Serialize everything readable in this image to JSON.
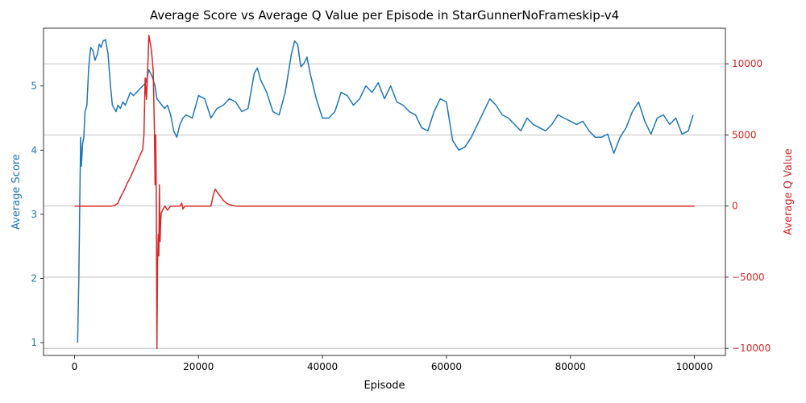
{
  "chart_data": {
    "type": "line",
    "title": "Average Score vs Average Q Value per Episode in StarGunnerNoFrameskip-v4",
    "xlabel": "Episode",
    "xlim": [
      -5000,
      105000
    ],
    "xticks": [
      0,
      20000,
      40000,
      60000,
      80000,
      100000
    ],
    "colors": {
      "score": "#1f77b4",
      "q": "#d62728"
    },
    "grid": "horizontal lines at right-axis ticks",
    "left_axis": {
      "label": "Average Score",
      "ylim": [
        0.8,
        5.9
      ],
      "ticks": [
        1,
        2,
        3,
        4,
        5
      ]
    },
    "right_axis": {
      "label": "Average Q Value",
      "ylim": [
        -10500,
        12500
      ],
      "ticks": [
        -10000,
        -5000,
        0,
        5000,
        10000
      ]
    },
    "series": [
      {
        "axis": "left",
        "x": [
          500,
          700,
          900,
          1000,
          1100,
          1300,
          1500,
          1700,
          2000,
          2300,
          2600,
          3000,
          3300,
          3700,
          4000,
          4300,
          4600,
          5000,
          5400,
          5800,
          6100,
          6400,
          6700,
          7000,
          7400,
          7800,
          8200,
          8600,
          9000,
          9500,
          10000,
          10500,
          11000,
          11500,
          12000,
          12500,
          13000,
          13300,
          13700,
          14100,
          14500,
          15000,
          15500,
          16000,
          16500,
          17000,
          17500,
          18000,
          19000,
          20000,
          21000,
          22000,
          23000,
          24000,
          25000,
          26000,
          27000,
          28000,
          29000,
          29500,
          30000,
          31000,
          32000,
          33000,
          34000,
          35000,
          35500,
          36000,
          36500,
          37000,
          37500,
          38000,
          39000,
          40000,
          41000,
          42000,
          43000,
          44000,
          45000,
          46000,
          47000,
          48000,
          49000,
          50000,
          51000,
          52000,
          53000,
          54000,
          55000,
          56000,
          57000,
          58000,
          59000,
          60000,
          61000,
          62000,
          63000,
          64000,
          65000,
          66000,
          67000,
          68000,
          69000,
          70000,
          71000,
          72000,
          73000,
          74000,
          75000,
          76000,
          77000,
          78000,
          79000,
          80000,
          81000,
          82000,
          83000,
          84000,
          85000,
          86000,
          87000,
          88000,
          89000,
          90000,
          91000,
          92000,
          93000,
          94000,
          95000,
          96000,
          97000,
          98000,
          99000,
          99800
        ],
        "y": [
          1.0,
          2.0,
          3.6,
          4.2,
          3.75,
          4.1,
          4.2,
          4.6,
          4.7,
          5.3,
          5.6,
          5.55,
          5.4,
          5.5,
          5.65,
          5.6,
          5.7,
          5.72,
          5.5,
          5.0,
          4.7,
          4.65,
          4.6,
          4.7,
          4.65,
          4.75,
          4.7,
          4.8,
          4.9,
          4.85,
          4.9,
          4.95,
          5.0,
          5.05,
          5.25,
          5.15,
          5.0,
          4.8,
          4.75,
          4.7,
          4.65,
          4.7,
          4.55,
          4.3,
          4.2,
          4.4,
          4.5,
          4.55,
          4.5,
          4.85,
          4.8,
          4.5,
          4.65,
          4.7,
          4.8,
          4.75,
          4.6,
          4.65,
          5.2,
          5.28,
          5.1,
          4.9,
          4.6,
          4.55,
          4.9,
          5.5,
          5.7,
          5.65,
          5.3,
          5.35,
          5.45,
          5.2,
          4.8,
          4.5,
          4.5,
          4.6,
          4.9,
          4.85,
          4.7,
          4.8,
          5.0,
          4.9,
          5.05,
          4.8,
          5.0,
          4.75,
          4.7,
          4.6,
          4.55,
          4.35,
          4.3,
          4.6,
          4.8,
          4.75,
          4.15,
          4.0,
          4.05,
          4.2,
          4.4,
          4.6,
          4.8,
          4.7,
          4.55,
          4.5,
          4.4,
          4.3,
          4.5,
          4.4,
          4.35,
          4.3,
          4.4,
          4.55,
          4.5,
          4.45,
          4.4,
          4.45,
          4.3,
          4.2,
          4.2,
          4.25,
          3.95,
          4.2,
          4.35,
          4.6,
          4.75,
          4.45,
          4.25,
          4.5,
          4.55,
          4.4,
          4.5,
          4.25,
          4.3,
          4.55
        ]
      },
      {
        "axis": "right",
        "x": [
          0,
          6000,
          6500,
          7000,
          7500,
          8000,
          8500,
          9000,
          9500,
          10000,
          10500,
          11000,
          11200,
          11400,
          11600,
          11800,
          12000,
          12200,
          12400,
          12700,
          12900,
          13000,
          13100,
          13200,
          13300,
          13400,
          13500,
          13600,
          13700,
          13800,
          13900,
          14000,
          14300,
          14600,
          15000,
          15500,
          16000,
          17000,
          17300,
          17500,
          17800,
          18000,
          18500,
          19000,
          20000,
          21000,
          22000,
          22400,
          22700,
          23000,
          23500,
          24000,
          24500,
          25000,
          25500,
          26000,
          27000,
          28000,
          30000,
          40000,
          60000,
          80000,
          100000
        ],
        "y": [
          0,
          0,
          50,
          200,
          700,
          1100,
          1600,
          2000,
          2500,
          3000,
          3500,
          4000,
          5000,
          9000,
          7500,
          9500,
          12000,
          11500,
          11000,
          9500,
          5000,
          1500,
          5000,
          0,
          -10000,
          -4000,
          -2000,
          -3500,
          1500,
          -2500,
          -1000,
          -500,
          -200,
          0,
          -300,
          0,
          0,
          0,
          200,
          -200,
          0,
          0,
          0,
          0,
          0,
          0,
          0,
          800,
          1200,
          1000,
          700,
          400,
          200,
          100,
          50,
          0,
          0,
          0,
          0,
          0,
          0,
          0,
          0
        ]
      }
    ]
  }
}
